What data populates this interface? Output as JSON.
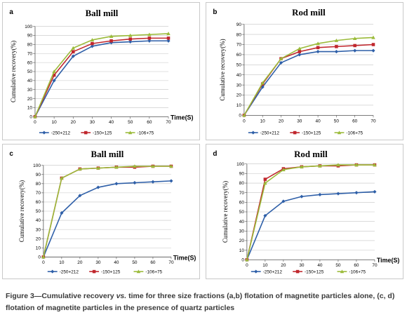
{
  "panels": [
    {
      "letter": "a",
      "title": "Ball mill"
    },
    {
      "letter": "b",
      "title": "Rod mill"
    },
    {
      "letter": "c",
      "title": "Ball mill"
    },
    {
      "letter": "d",
      "title": "Rod mill"
    }
  ],
  "caption": {
    "prefix": "Figure 3—Cumulative recovery ",
    "vs": "vs.",
    "rest": " time for three size fractions (a,b) flotation of magnetite particles alone, (c, d) flotation of magnetite particles in the presence of quartz particles"
  },
  "series_style": [
    {
      "color": "#2e5fa8",
      "marker": "diamond"
    },
    {
      "color": "#c0272d",
      "marker": "square"
    },
    {
      "color": "#9bbb3a",
      "marker": "triangle"
    }
  ],
  "chart_data": [
    {
      "type": "line",
      "title": "Ball mill",
      "ylabel": "Cumulative recovery(%)",
      "xlabel": "Time(S)",
      "ylim": [
        0,
        100
      ],
      "yticks": [
        0,
        10,
        20,
        30,
        40,
        50,
        60,
        70,
        80,
        90,
        100
      ],
      "xlim": [
        0,
        70
      ],
      "xticks": [
        0,
        10,
        20,
        30,
        40,
        50,
        60,
        70
      ],
      "grid": true,
      "legend": "bottom",
      "x": [
        0,
        10,
        20,
        30,
        40,
        50,
        60,
        70
      ],
      "series": [
        {
          "name": "-250+212",
          "values": [
            0,
            40,
            67,
            78,
            82,
            83,
            84,
            84
          ]
        },
        {
          "name": "-150+125",
          "values": [
            0,
            46,
            72,
            81,
            84,
            86,
            87,
            87
          ]
        },
        {
          "name": "-106+75",
          "values": [
            0,
            50,
            76,
            85,
            89,
            90,
            91,
            92
          ]
        }
      ]
    },
    {
      "type": "line",
      "title": "Rod mill",
      "ylabel": "Cumulative recovery(%)",
      "xlabel": "",
      "ylim": [
        0,
        90
      ],
      "yticks": [
        0,
        10,
        20,
        30,
        40,
        50,
        60,
        70,
        80,
        90
      ],
      "xlim": [
        0,
        70
      ],
      "xticks": [
        0,
        10,
        20,
        30,
        40,
        50,
        60,
        70
      ],
      "grid": true,
      "legend": "bottom",
      "x": [
        0,
        10,
        20,
        30,
        40,
        50,
        60,
        70
      ],
      "series": [
        {
          "name": "-250+212",
          "values": [
            0,
            28,
            52,
            60,
            63,
            63,
            64,
            64
          ]
        },
        {
          "name": "-150+125",
          "values": [
            0,
            31,
            56,
            63,
            67,
            68,
            69,
            70
          ]
        },
        {
          "name": "-106+75",
          "values": [
            0,
            32,
            56,
            66,
            71,
            74,
            76,
            77
          ]
        }
      ]
    },
    {
      "type": "line",
      "title": "Ball mill",
      "ylabel": "Cumulative recovery(%)",
      "xlabel": "Time(S)",
      "ylim": [
        0,
        100
      ],
      "yticks": [
        0,
        10,
        20,
        30,
        40,
        50,
        60,
        70,
        80,
        90,
        100
      ],
      "xlim": [
        0,
        70
      ],
      "xticks": [
        0,
        10,
        20,
        30,
        40,
        50,
        60,
        70
      ],
      "grid": true,
      "legend": "bottom",
      "x": [
        0,
        10,
        20,
        30,
        40,
        50,
        60,
        70
      ],
      "series": [
        {
          "name": "-250+212",
          "values": [
            0,
            48,
            67,
            76,
            80,
            81,
            82,
            83
          ]
        },
        {
          "name": "-150+125",
          "values": [
            0,
            86,
            96,
            97,
            98,
            98,
            99,
            99
          ]
        },
        {
          "name": "-106+75",
          "values": [
            0,
            86,
            96,
            97,
            98,
            99,
            99,
            99
          ]
        }
      ]
    },
    {
      "type": "line",
      "title": "Rod mill",
      "ylabel": "Cumulative recovery(%)",
      "xlabel": "Time(S)",
      "ylim": [
        0,
        100
      ],
      "yticks": [
        0,
        10,
        20,
        30,
        40,
        50,
        60,
        70,
        80,
        90,
        100
      ],
      "xlim": [
        0,
        70
      ],
      "xticks": [
        0,
        10,
        20,
        30,
        40,
        50,
        60,
        70
      ],
      "grid": true,
      "legend": "bottom",
      "x": [
        0,
        10,
        20,
        30,
        40,
        50,
        60,
        70
      ],
      "series": [
        {
          "name": "-250+212",
          "values": [
            0,
            46,
            61,
            66,
            68,
            69,
            70,
            71
          ]
        },
        {
          "name": "-150+125",
          "values": [
            0,
            84,
            95,
            97,
            98,
            98,
            99,
            99
          ]
        },
        {
          "name": "-106+75",
          "values": [
            0,
            80,
            94,
            97,
            98,
            99,
            99,
            99
          ]
        }
      ]
    }
  ]
}
